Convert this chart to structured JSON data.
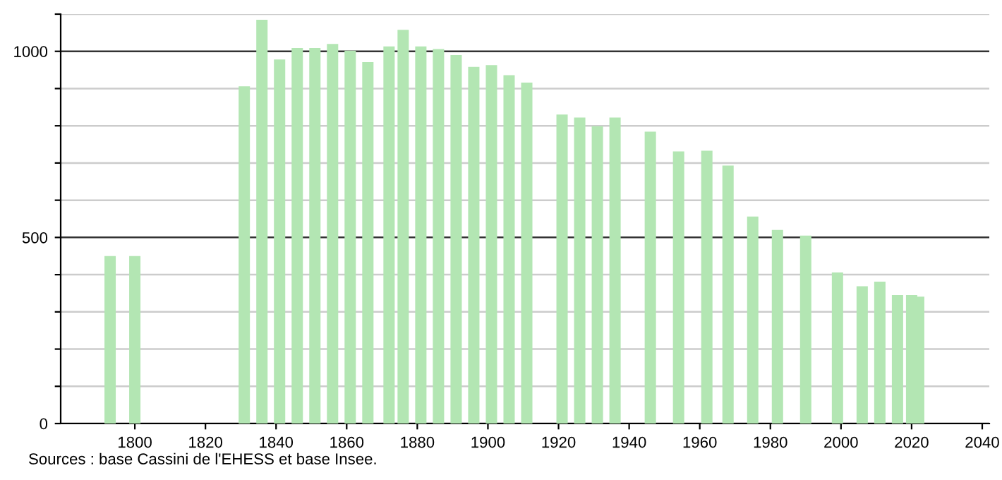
{
  "chart_data": {
    "type": "bar",
    "x": [
      1793,
      1800,
      1831,
      1836,
      1841,
      1846,
      1851,
      1856,
      1861,
      1866,
      1872,
      1876,
      1881,
      1886,
      1891,
      1896,
      1901,
      1906,
      1911,
      1921,
      1926,
      1931,
      1936,
      1946,
      1954,
      1962,
      1968,
      1975,
      1982,
      1990,
      1999,
      2006,
      2011,
      2016,
      2020,
      2022
    ],
    "values": [
      450,
      450,
      906,
      1085,
      978,
      1009,
      1009,
      1020,
      1002,
      971,
      1013,
      1058,
      1013,
      1006,
      990,
      958,
      963,
      936,
      916,
      830,
      822,
      799,
      822,
      784,
      731,
      733,
      693,
      556,
      520,
      505,
      406,
      369,
      381,
      345,
      345,
      341
    ],
    "color": "#b3e6b3",
    "xlim": [
      1779,
      2042
    ],
    "xticks": [
      1800,
      1820,
      1840,
      1860,
      1880,
      1900,
      1920,
      1940,
      1960,
      1980,
      2000,
      2020,
      2040
    ],
    "ylim": [
      0,
      1100
    ],
    "yticks": [
      0,
      {
        "value": 100,
        "label": null
      },
      {
        "value": 200,
        "label": null
      },
      {
        "value": 300,
        "label": null
      },
      {
        "value": 400,
        "label": null
      },
      500,
      {
        "value": 600,
        "label": null
      },
      {
        "value": 700,
        "label": null
      },
      {
        "value": 800,
        "label": null
      },
      {
        "value": 900,
        "label": null
      },
      1000,
      {
        "value": 1100,
        "label": null
      }
    ],
    "grid": "y",
    "annotations": [
      "Sources : base Cassini de l'EHESS et base Insee."
    ]
  }
}
